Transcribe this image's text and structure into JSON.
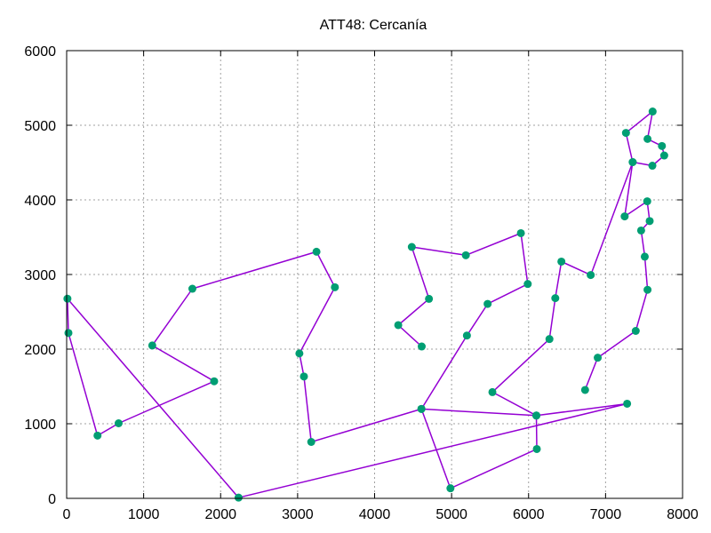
{
  "chart_data": {
    "type": "line",
    "title": "ATT48: Cercanía",
    "xlabel": "",
    "ylabel": "",
    "xlim": [
      0,
      8000
    ],
    "ylim": [
      0,
      6000
    ],
    "x_ticks": [
      0,
      1000,
      2000,
      3000,
      4000,
      5000,
      6000,
      7000,
      8000
    ],
    "y_ticks": [
      0,
      1000,
      2000,
      3000,
      4000,
      5000,
      6000
    ],
    "grid": true,
    "legend": "none",
    "colors": {
      "line": "#9400d3",
      "marker": "#009e73"
    },
    "series": [
      {
        "x": [
          6734,
          6898,
          7392,
          7545,
          7509,
          7462,
          7573,
          7541,
          7248,
          7352,
          7265,
          7611,
          7545,
          7732,
          7762,
          7608,
          7352,
          6807,
          6426,
          6347,
          6271,
          5530,
          6101,
          6107,
          4985,
          4608,
          3177,
          3082,
          3023,
          3484,
          3245,
          1633,
          1112,
          1916,
          675,
          401,
          23,
          10,
          2233,
          7280,
          6101,
          4608,
          5199,
          5468,
          5989,
          5900,
          5185,
          4483,
          4706,
          4307,
          4612
        ],
        "y": [
          1453,
          1885,
          2244,
          2795,
          3239,
          3590,
          3716,
          3981,
          3779,
          4506,
          4898,
          5184,
          4817,
          4722,
          4595,
          4458,
          4506,
          2993,
          3173,
          2683,
          2135,
          1424,
          1110,
          661,
          135,
          1198,
          756,
          1633,
          1942,
          2829,
          3305,
          2809,
          2049,
          1569,
          1006,
          841,
          2216,
          2676,
          10,
          1268,
          1110,
          1198,
          2182,
          2606,
          2873,
          3554,
          3258,
          3369,
          2674,
          2322,
          2035
        ]
      }
    ]
  }
}
